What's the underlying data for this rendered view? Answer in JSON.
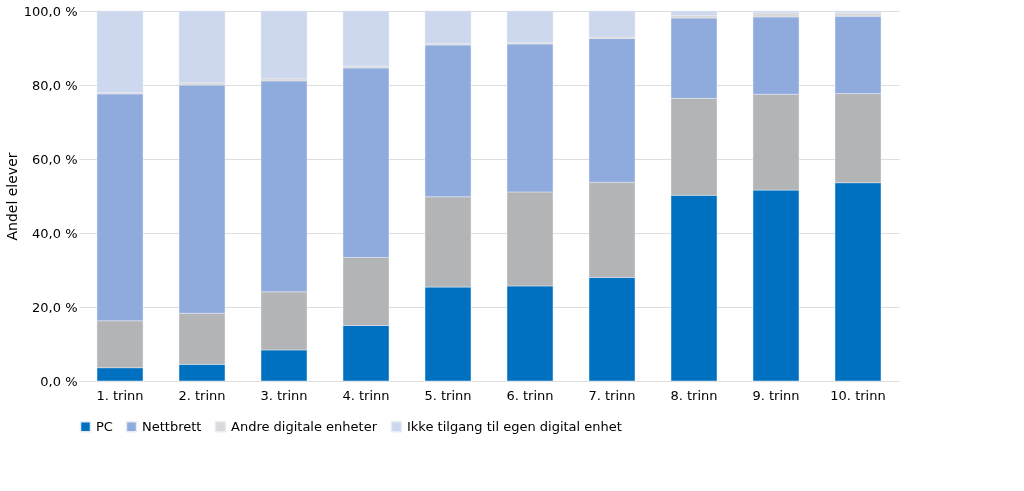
{
  "chart_data": {
    "type": "bar",
    "stacked": true,
    "ylabel": "Andel elever",
    "categories": [
      "1. trinn",
      "2. trinn",
      "3. trinn",
      "4. trinn",
      "5. trinn",
      "6. trinn",
      "7. trinn",
      "8. trinn",
      "9. trinn",
      "10. trinn"
    ],
    "series": [
      {
        "name": "PC",
        "color": "#0070c0",
        "values": [
          3.6,
          4.5,
          8.4,
          15.0,
          25.4,
          25.7,
          28.0,
          50.2,
          51.6,
          53.6
        ]
      },
      {
        "color": "#b3b4b6",
        "values": [
          12.7,
          13.8,
          15.7,
          18.4,
          24.4,
          25.4,
          25.7,
          26.2,
          25.9,
          24.1
        ]
      },
      {
        "name": "Nettbrett",
        "color": "#8faadc",
        "values": [
          61.3,
          61.7,
          57.0,
          51.2,
          41.0,
          40.0,
          38.9,
          21.7,
          20.9,
          20.9
        ]
      },
      {
        "name": "Andre digitale enheter",
        "color": "#d9d9d9",
        "values": [
          0.4,
          0.6,
          0.6,
          0.5,
          0.4,
          0.3,
          0.4,
          0.7,
          1.1,
          0.9
        ]
      },
      {
        "name": "Ikke tilgang til egen digital enhet",
        "color": "#cdd7ee",
        "values": [
          22.0,
          19.4,
          18.3,
          14.9,
          8.8,
          8.6,
          7.0,
          1.2,
          0.5,
          0.5
        ]
      }
    ],
    "ylim": [
      0,
      100
    ],
    "yticks": [
      {
        "value": 0,
        "label": "0,0 %"
      },
      {
        "value": 20,
        "label": "20,0 %"
      },
      {
        "value": 40,
        "label": "40,0 %"
      },
      {
        "value": 60,
        "label": "60,0 %"
      },
      {
        "value": 80,
        "label": "80,0 %"
      },
      {
        "value": 100,
        "label": "100,0 %"
      }
    ],
    "grid": "y",
    "legend": "bottom"
  }
}
